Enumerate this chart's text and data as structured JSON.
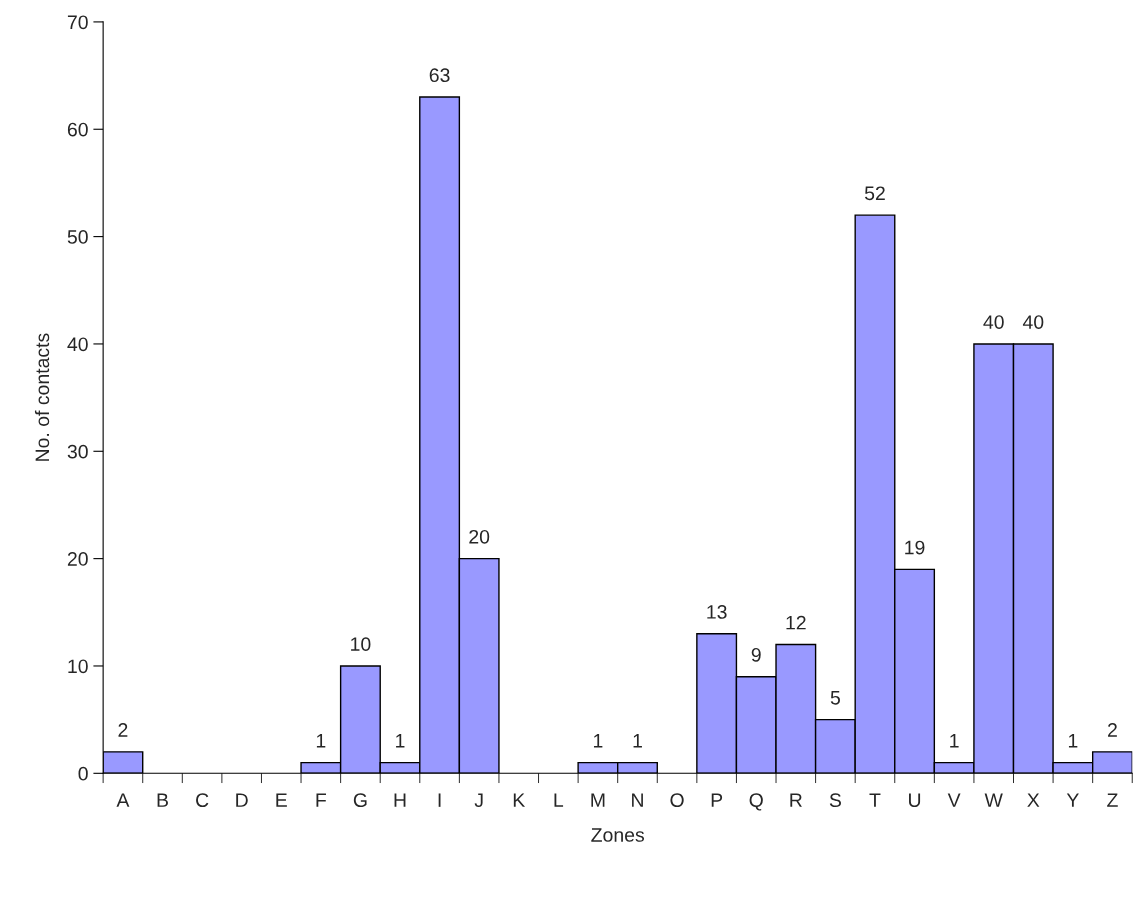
{
  "chart_data": {
    "type": "bar",
    "xlabel": "Zones",
    "ylabel": "No. of contacts",
    "categories": [
      "A",
      "B",
      "C",
      "D",
      "E",
      "F",
      "G",
      "H",
      "I",
      "J",
      "K",
      "L",
      "M",
      "N",
      "O",
      "P",
      "Q",
      "R",
      "S",
      "T",
      "U",
      "V",
      "W",
      "X",
      "Y",
      "Z"
    ],
    "values": [
      2,
      0,
      0,
      0,
      0,
      1,
      10,
      1,
      63,
      20,
      0,
      0,
      1,
      1,
      0,
      13,
      9,
      12,
      5,
      52,
      19,
      1,
      40,
      40,
      1,
      2
    ],
    "value_labels": [
      "2",
      null,
      null,
      null,
      null,
      "1",
      "10",
      "1",
      "63",
      "20",
      null,
      null,
      "1",
      "1",
      null,
      "13",
      "9",
      "12",
      "5",
      "52",
      "19",
      "1",
      "40",
      "40",
      "1",
      "2"
    ],
    "color": "#9999ff",
    "ylim": [
      0,
      70
    ],
    "yticks": [
      0,
      10,
      20,
      30,
      40,
      50,
      60,
      70
    ],
    "grid": false
  }
}
